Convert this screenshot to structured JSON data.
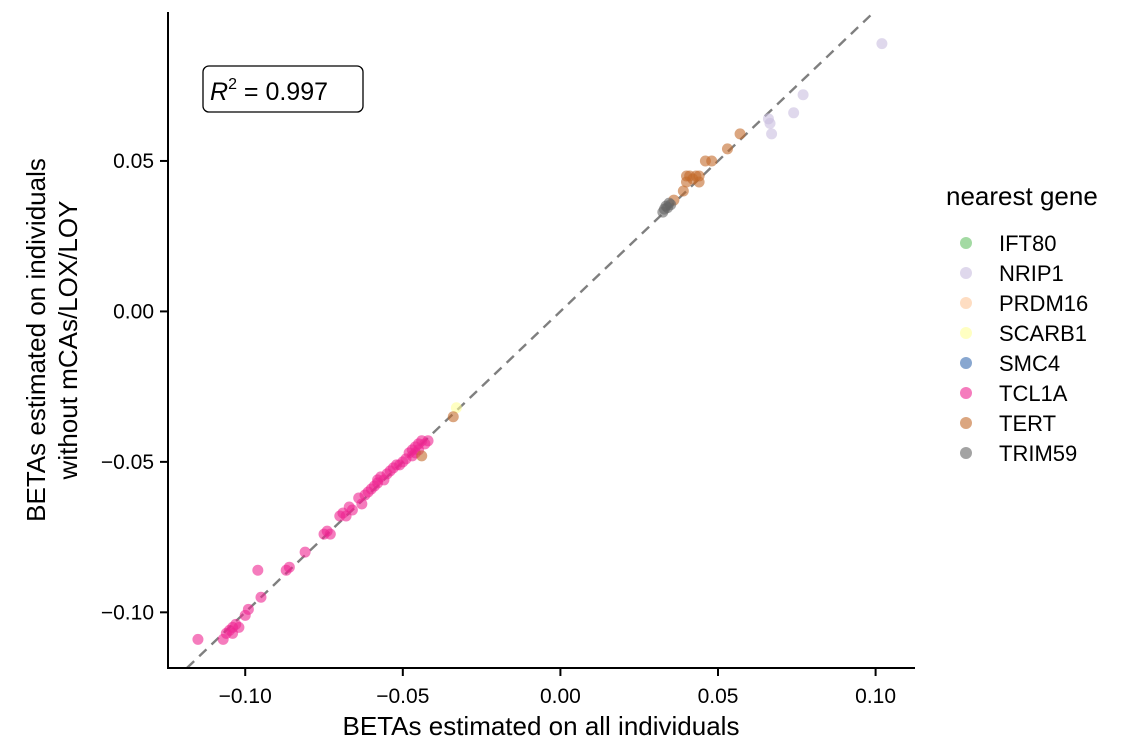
{
  "chart_data": {
    "type": "scatter",
    "xlabel": "BETAs estimated on all individuals",
    "ylabel": [
      "BETAs estimated on individuals",
      "without mCAs/LOX/LOY"
    ],
    "xlim": [
      -0.1245,
      0.1125
    ],
    "ylim": [
      -0.1185,
      0.0995
    ],
    "x_ticks": [
      -0.1,
      -0.05,
      0.0,
      0.05,
      0.1
    ],
    "x_tick_labels": [
      "−0.10",
      "−0.05",
      "0.00",
      "0.05",
      "0.10"
    ],
    "y_ticks": [
      -0.1,
      -0.05,
      0.0,
      0.05
    ],
    "y_tick_labels": [
      "−0.10",
      "−0.05",
      "0.00",
      "0.05"
    ],
    "grid": false,
    "reference_line": {
      "type": "identity",
      "style": "dashed",
      "color": "#7f7f7f"
    },
    "annotation": {
      "r_symbol": "R",
      "superscript": "2",
      "value_text": " = 0.997",
      "r2": 0.997
    },
    "legend": {
      "title": "nearest gene",
      "position": "right"
    },
    "series": [
      {
        "name": "IFT80",
        "color": "#66c266",
        "points": []
      },
      {
        "name": "NRIP1",
        "color": "#c9bedf",
        "points": [
          [
            0.102,
            0.089
          ],
          [
            0.077,
            0.072
          ],
          [
            0.074,
            0.066
          ],
          [
            0.066,
            0.064
          ],
          [
            0.0665,
            0.0625
          ],
          [
            0.067,
            0.059
          ]
        ]
      },
      {
        "name": "PRDM16",
        "color": "#fdc79a",
        "points": []
      },
      {
        "name": "SCARB1",
        "color": "#ffff99",
        "points": [
          [
            -0.033,
            -0.032
          ]
        ]
      },
      {
        "name": "SMC4",
        "color": "#386cb0",
        "points": []
      },
      {
        "name": "TCL1A",
        "color": "#ee2591",
        "points": [
          [
            -0.115,
            -0.109
          ],
          [
            -0.107,
            -0.109
          ],
          [
            -0.106,
            -0.107
          ],
          [
            -0.105,
            -0.106
          ],
          [
            -0.104,
            -0.107
          ],
          [
            -0.104,
            -0.105
          ],
          [
            -0.103,
            -0.104
          ],
          [
            -0.102,
            -0.105
          ],
          [
            -0.1,
            -0.101
          ],
          [
            -0.099,
            -0.099
          ],
          [
            -0.096,
            -0.086
          ],
          [
            -0.095,
            -0.095
          ],
          [
            -0.087,
            -0.086
          ],
          [
            -0.086,
            -0.085
          ],
          [
            -0.081,
            -0.08
          ],
          [
            -0.075,
            -0.074
          ],
          [
            -0.074,
            -0.073
          ],
          [
            -0.073,
            -0.074
          ],
          [
            -0.07,
            -0.068
          ],
          [
            -0.069,
            -0.067
          ],
          [
            -0.068,
            -0.068
          ],
          [
            -0.067,
            -0.065
          ],
          [
            -0.066,
            -0.066
          ],
          [
            -0.064,
            -0.062
          ],
          [
            -0.063,
            -0.064
          ],
          [
            -0.062,
            -0.061
          ],
          [
            -0.061,
            -0.06
          ],
          [
            -0.06,
            -0.059
          ],
          [
            -0.059,
            -0.058
          ],
          [
            -0.058,
            -0.057
          ],
          [
            -0.058,
            -0.056
          ],
          [
            -0.057,
            -0.055
          ],
          [
            -0.056,
            -0.056
          ],
          [
            -0.055,
            -0.054
          ],
          [
            -0.054,
            -0.053
          ],
          [
            -0.053,
            -0.052
          ],
          [
            -0.052,
            -0.051
          ],
          [
            -0.051,
            -0.051
          ],
          [
            -0.05,
            -0.05
          ],
          [
            -0.049,
            -0.049
          ],
          [
            -0.048,
            -0.047
          ],
          [
            -0.047,
            -0.048
          ],
          [
            -0.047,
            -0.046
          ],
          [
            -0.046,
            -0.045
          ],
          [
            -0.045,
            -0.046
          ],
          [
            -0.045,
            -0.044
          ],
          [
            -0.044,
            -0.043
          ],
          [
            -0.043,
            -0.044
          ],
          [
            -0.042,
            -0.043
          ],
          [
            -0.046,
            -0.047
          ]
        ]
      },
      {
        "name": "TERT",
        "color": "#c36a2c",
        "points": [
          [
            -0.044,
            -0.048
          ],
          [
            -0.034,
            -0.035
          ],
          [
            0.036,
            0.037
          ],
          [
            0.039,
            0.04
          ],
          [
            0.04,
            0.043
          ],
          [
            0.041,
            0.045
          ],
          [
            0.042,
            0.044
          ],
          [
            0.043,
            0.045
          ],
          [
            0.044,
            0.043
          ],
          [
            0.044,
            0.045
          ],
          [
            0.046,
            0.05
          ],
          [
            0.048,
            0.05
          ],
          [
            0.053,
            0.054
          ],
          [
            0.057,
            0.059
          ],
          [
            0.04,
            0.045
          ]
        ]
      },
      {
        "name": "TRIM59",
        "color": "#666666",
        "points": [
          [
            0.033,
            0.034
          ],
          [
            0.0335,
            0.035
          ],
          [
            0.034,
            0.0345
          ],
          [
            0.0345,
            0.036
          ],
          [
            0.035,
            0.0355
          ],
          [
            0.0325,
            0.033
          ]
        ]
      }
    ]
  }
}
